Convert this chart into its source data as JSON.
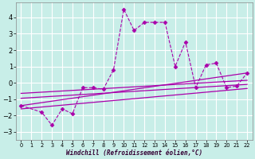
{
  "xlabel": "Windchill (Refroidissement éolien,°C)",
  "bg_color": "#c8eee8",
  "grid_color": "#ffffff",
  "line_color": "#aa00aa",
  "xlim": [
    -0.5,
    22.5
  ],
  "ylim": [
    -3.5,
    4.9
  ],
  "yticks": [
    -3,
    -2,
    -1,
    0,
    1,
    2,
    3,
    4
  ],
  "xticks": [
    0,
    1,
    2,
    3,
    4,
    5,
    6,
    7,
    8,
    9,
    10,
    11,
    12,
    13,
    14,
    15,
    16,
    17,
    18,
    19,
    20,
    21,
    22
  ],
  "series1_x": [
    0,
    2,
    3,
    4,
    5,
    6,
    7,
    8,
    9,
    10,
    11,
    12,
    13,
    14,
    15,
    16,
    17,
    18,
    19,
    20,
    21,
    22
  ],
  "series1_y": [
    -1.4,
    -1.8,
    -2.6,
    -1.6,
    -1.9,
    -0.3,
    -0.3,
    -0.4,
    0.8,
    4.5,
    3.2,
    3.7,
    3.7,
    3.7,
    1.0,
    2.5,
    -0.3,
    1.1,
    1.2,
    -0.3,
    -0.2,
    0.6
  ],
  "series2_x": [
    0,
    22
  ],
  "series2_y": [
    -1.4,
    0.6
  ],
  "series3_x": [
    0,
    22
  ],
  "series3_y": [
    -0.65,
    0.15
  ],
  "series4_x": [
    0,
    22
  ],
  "series4_y": [
    -0.95,
    -0.1
  ],
  "series5_x": [
    0,
    22
  ],
  "series5_y": [
    -1.6,
    -0.35
  ]
}
